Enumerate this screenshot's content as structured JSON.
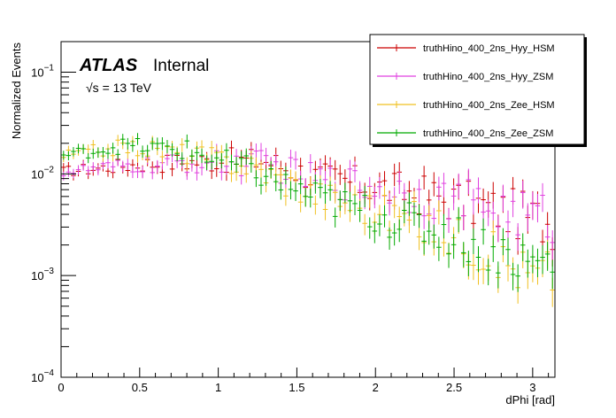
{
  "chart_data": {
    "type": "line",
    "style": "histogram-steps-with-error-bars",
    "title": "",
    "xlabel": "dPhi [rad]",
    "ylabel": "Normalized Events",
    "xlim": [
      0,
      3.14159
    ],
    "ylim": [
      0.0001,
      0.2
    ],
    "yscale": "log",
    "xticks": [
      0,
      0.5,
      1,
      1.5,
      2,
      2.5,
      3
    ],
    "xtick_labels": [
      "0",
      "0.5",
      "1",
      "1.5",
      "2",
      "2.5",
      "3"
    ],
    "yticks": [
      {
        "value": 0.1,
        "base": "10",
        "exp": "−1"
      },
      {
        "value": 0.01,
        "base": "10",
        "exp": "−2"
      },
      {
        "value": 0.001,
        "base": "10",
        "exp": "−3"
      },
      {
        "value": 0.0001,
        "base": "10",
        "exp": "−4"
      }
    ],
    "annotations": {
      "experiment": "ATLAS",
      "status": "Internal",
      "energy": "√s = 13 TeV"
    },
    "legend": "top-right",
    "bins": 100,
    "series": [
      {
        "name": "truthHino_400_2ns_Hyy_HSM",
        "color": "#cc0000",
        "anchors": [
          [
            0,
            0.0105
          ],
          [
            0.5,
            0.0125
          ],
          [
            1.0,
            0.0135
          ],
          [
            1.3,
            0.0135
          ],
          [
            1.6,
            0.0095
          ],
          [
            2.0,
            0.0075
          ],
          [
            2.5,
            0.0055
          ],
          [
            3.14,
            0.0033
          ]
        ]
      },
      {
        "name": "truthHino_400_2ns_Hyy_ZSM",
        "color": "#e040e0",
        "anchors": [
          [
            0,
            0.0105
          ],
          [
            0.5,
            0.012
          ],
          [
            1.0,
            0.013
          ],
          [
            1.3,
            0.0125
          ],
          [
            1.6,
            0.009
          ],
          [
            2.0,
            0.0075
          ],
          [
            2.5,
            0.0055
          ],
          [
            3.14,
            0.0035
          ]
        ]
      },
      {
        "name": "truthHino_400_2ns_Zee_HSM",
        "color": "#f0c020",
        "anchors": [
          [
            0,
            0.015
          ],
          [
            0.4,
            0.0185
          ],
          [
            0.8,
            0.016
          ],
          [
            1.2,
            0.012
          ],
          [
            1.6,
            0.0065
          ],
          [
            2.0,
            0.0045
          ],
          [
            2.5,
            0.0025
          ],
          [
            3.0,
            0.001
          ],
          [
            3.14,
            0.0011
          ]
        ]
      },
      {
        "name": "truthHino_400_2ns_Zee_ZSM",
        "color": "#00aa00",
        "anchors": [
          [
            0,
            0.015
          ],
          [
            0.4,
            0.019
          ],
          [
            0.8,
            0.017
          ],
          [
            1.2,
            0.011
          ],
          [
            1.6,
            0.006
          ],
          [
            2.0,
            0.004
          ],
          [
            2.5,
            0.0025
          ],
          [
            3.0,
            0.0013
          ],
          [
            3.14,
            0.0015
          ]
        ]
      }
    ]
  }
}
